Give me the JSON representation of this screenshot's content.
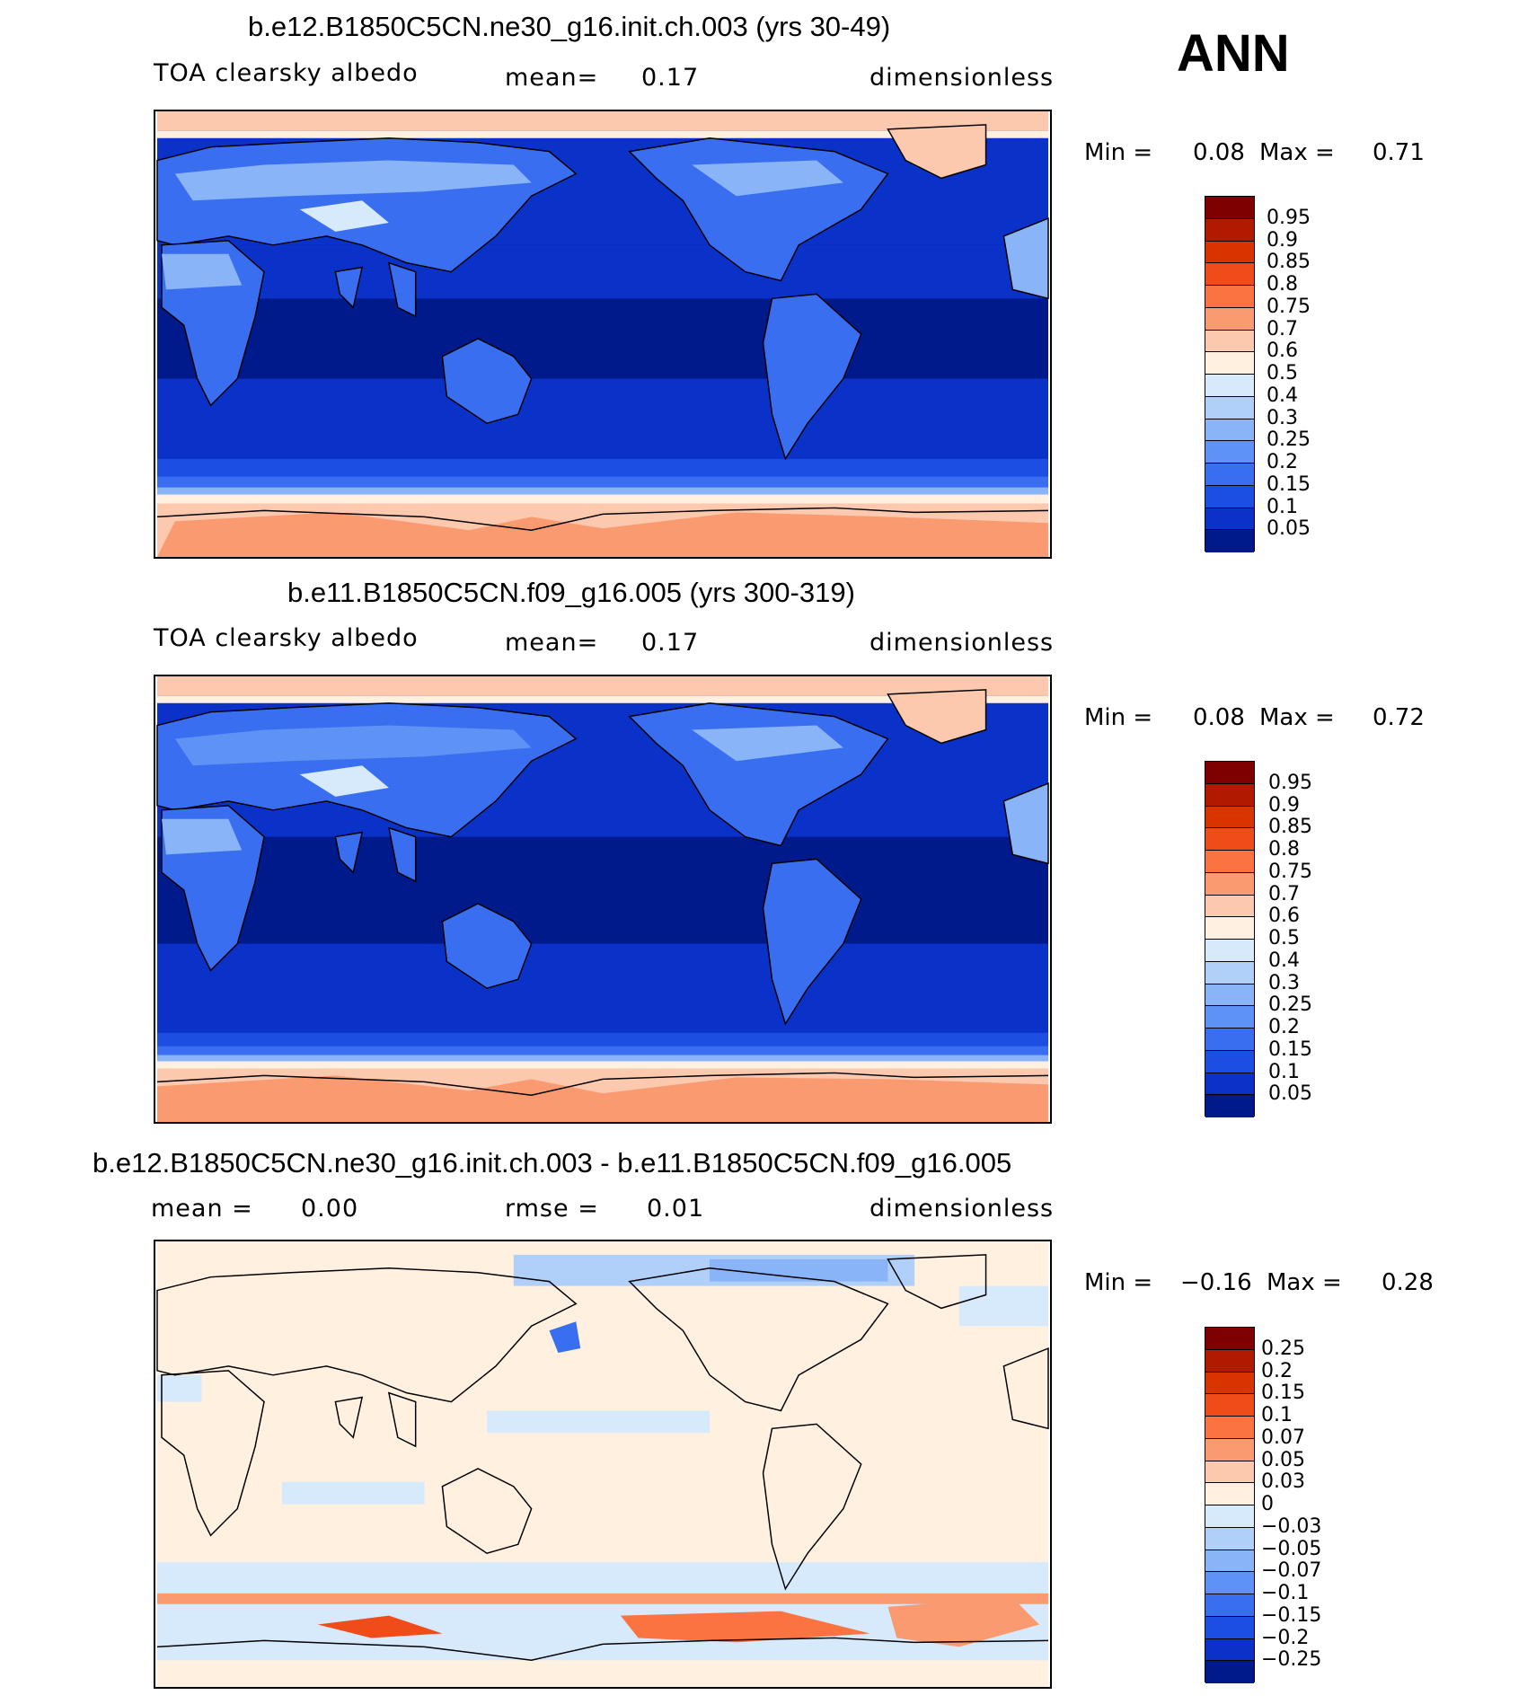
{
  "season": "ANN",
  "panels": [
    {
      "title": "b.e12.B1850C5CN.ne30_g16.init.ch.003 (yrs 30-49)",
      "variable": "TOA clearsky albedo",
      "mean_label": "mean=",
      "mean_value": "0.17",
      "units": "dimensionless",
      "min_label": "Min =",
      "min_value": "0.08",
      "max_label": "Max =",
      "max_value": "0.71"
    },
    {
      "title": "b.e11.B1850C5CN.f09_g16.005 (yrs 300-319)",
      "variable": "TOA clearsky albedo",
      "mean_label": "mean=",
      "mean_value": "0.17",
      "units": "dimensionless",
      "min_label": "Min =",
      "min_value": "0.08",
      "max_label": "Max =",
      "max_value": "0.72"
    },
    {
      "title": "b.e12.B1850C5CN.ne30_g16.init.ch.003 - b.e11.B1850C5CN.f09_g16.005",
      "mean_label": "mean =",
      "mean_value": "0.00",
      "rmse_label": "rmse =",
      "rmse_value": "0.01",
      "units": "dimensionless",
      "min_label": "Min =",
      "min_value": "−0.16",
      "max_label": "Max =",
      "max_value": "0.28"
    }
  ],
  "colorbar_abs": {
    "labels": [
      "0.95",
      "0.9",
      "0.85",
      "0.8",
      "0.75",
      "0.7",
      "0.6",
      "0.5",
      "0.4",
      "0.3",
      "0.25",
      "0.2",
      "0.15",
      "0.1",
      "0.05"
    ],
    "colors": [
      "#7f0000",
      "#b21a00",
      "#d93300",
      "#f04c1a",
      "#fa7340",
      "#fa9a70",
      "#fcc8ae",
      "#fff0e0",
      "#d6eafc",
      "#b0d0fa",
      "#8ab4f8",
      "#5e92f4",
      "#3a6ef0",
      "#1c4ee4",
      "#0a32c8",
      "#001a8c"
    ]
  },
  "colorbar_diff": {
    "labels": [
      "0.25",
      "0.2",
      "0.15",
      "0.1",
      "0.07",
      "0.05",
      "0.03",
      "0",
      "−0.03",
      "−0.05",
      "−0.07",
      "−0.1",
      "−0.15",
      "−0.2",
      "−0.25"
    ],
    "colors": [
      "#7f0000",
      "#b21a00",
      "#d93300",
      "#f04c1a",
      "#fa7340",
      "#fa9a70",
      "#fcc8ae",
      "#fff0e0",
      "#d6eafc",
      "#b0d0fa",
      "#8ab4f8",
      "#5e92f4",
      "#3a6ef0",
      "#1c4ee4",
      "#0a32c8",
      "#001a8c"
    ]
  }
}
